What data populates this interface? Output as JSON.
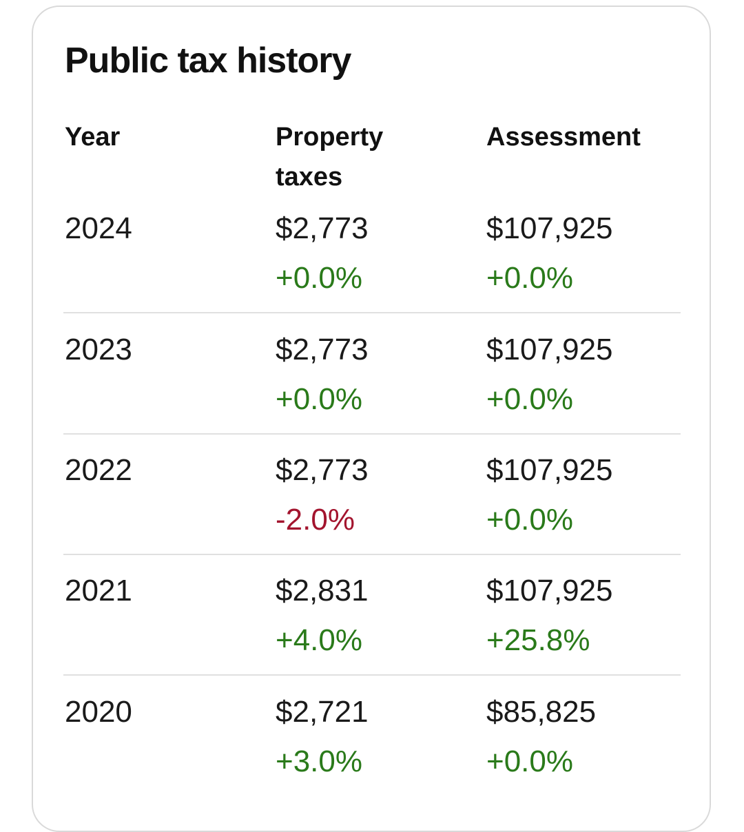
{
  "title": "Public tax history",
  "colors": {
    "positive": "#2a7a1a",
    "negative": "#a3142e"
  },
  "headers": {
    "year": "Year",
    "property_taxes_line1": "Property",
    "property_taxes_line2": "taxes",
    "assessment": "Assessment"
  },
  "rows": [
    {
      "year": "2024",
      "tax": "$2,773",
      "tax_change": "+0.0%",
      "assessment": "$107,925",
      "assessment_change": "+0.0%"
    },
    {
      "year": "2023",
      "tax": "$2,773",
      "tax_change": "+0.0%",
      "assessment": "$107,925",
      "assessment_change": "+0.0%"
    },
    {
      "year": "2022",
      "tax": "$2,773",
      "tax_change": "-2.0%",
      "assessment": "$107,925",
      "assessment_change": "+0.0%"
    },
    {
      "year": "2021",
      "tax": "$2,831",
      "tax_change": "+4.0%",
      "assessment": "$107,925",
      "assessment_change": "+25.8%"
    },
    {
      "year": "2020",
      "tax": "$2,721",
      "tax_change": "+3.0%",
      "assessment": "$85,825",
      "assessment_change": "+0.0%"
    }
  ]
}
